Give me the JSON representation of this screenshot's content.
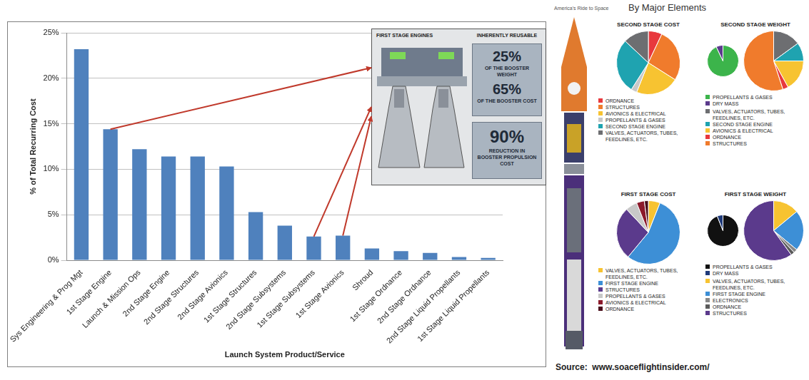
{
  "chart_data": [
    {
      "type": "bar",
      "categories": [
        "Sys Engineering & Prog Mgt",
        "1st Stage Engine",
        "Launch & Mission Ops",
        "2nd Stage Engine",
        "2nd Stage Structures",
        "2nd Stage Avionics",
        "1st Stage Structures",
        "2nd Stage Subsystems",
        "1st Stage Subsystems",
        "1st Stage Avionics",
        "Shroud",
        "1st Stage Ordnance",
        "2nd Stage Ordnance",
        "2nd Stage Liquid Propellants",
        "1st Stage Liquid Propellants"
      ],
      "values": [
        23.2,
        14.4,
        12.2,
        11.4,
        11.4,
        10.3,
        5.3,
        3.8,
        2.6,
        2.7,
        1.3,
        1.0,
        0.8,
        0.35,
        0.25
      ],
      "color": "#4f81bd",
      "ylim": [
        0,
        25
      ],
      "yticks": [
        {
          "value": 0,
          "label": "0%"
        },
        {
          "value": 5,
          "label": "5%"
        },
        {
          "value": 10,
          "label": "10%"
        },
        {
          "value": 15,
          "label": "15%"
        },
        {
          "value": 20,
          "label": "20%"
        },
        {
          "value": 25,
          "label": "25%"
        }
      ],
      "grid": true,
      "x_label": "Launch System Product/Service",
      "y_label": "% of Total Recurring Cost"
    },
    {
      "type": "pie",
      "title": "SECOND STAGE COST",
      "categories": [
        "ORDNANCE",
        "STRUCTURES",
        "AVIONICS & ELECTRICAL",
        "PROPELLANTS & GASES",
        "SECOND STAGE ENGINE",
        "VALVES, ACTUATORS, TUBES, FEEDLINES, ETC."
      ],
      "values": [
        7,
        27,
        22,
        3,
        28,
        13
      ],
      "colors": [
        "#e8383d",
        "#f07b2c",
        "#f7c331",
        "#c8c8c8",
        "#1fa3b0",
        "#6d6e71"
      ],
      "legend": "bottom"
    },
    {
      "type": "pie",
      "title": "SECOND STAGE WEIGHT",
      "categories": [
        "PROPELLANTS & GASES",
        "DRY MASS"
      ],
      "values": [
        93,
        7
      ],
      "colors": [
        "#3cb44b",
        "#5b3a8c"
      ],
      "legend": "bottom"
    },
    {
      "type": "pie",
      "categories": [
        "VALVES, ACTUATORS, TUBES, FEEDLINES, ETC.",
        "SECOND STAGE ENGINE",
        "AVIONICS & ELECTRICAL",
        "ORDNANCE",
        "STRUCTURES"
      ],
      "values": [
        15,
        10,
        17,
        3,
        55
      ],
      "colors": [
        "#6d6e71",
        "#1fa3b0",
        "#f7c331",
        "#e8383d",
        "#f07b2c"
      ],
      "legend": "bottom"
    },
    {
      "type": "pie",
      "title": "FIRST STAGE COST",
      "categories": [
        "VALVES, ACTUATORS, TUBES, FEEDLINES, ETC.",
        "FIRST STAGE ENGINE",
        "STRUCTURES",
        "PROPELLANTS & GASES",
        "AVIONICS & ELECTRICAL",
        "ORDNANCE"
      ],
      "values": [
        6,
        55,
        27,
        6,
        4,
        2
      ],
      "colors": [
        "#f7c331",
        "#3d8fd6",
        "#5b3a8c",
        "#c8c8c8",
        "#8b1a2b",
        "#4a0f1c"
      ],
      "legend": "bottom"
    },
    {
      "type": "pie",
      "title": "FIRST STAGE WEIGHT",
      "categories": [
        "PROPELLANTS & GASES",
        "DRY MASS"
      ],
      "values": [
        94,
        6
      ],
      "colors": [
        "#111111",
        "#1f3a7a"
      ],
      "legend": "bottom"
    },
    {
      "type": "pie",
      "categories": [
        "VALVES, ACTUATORS, TUBES, FEEDLINES, ETC.",
        "FIRST STAGE ENGINE",
        "ELECTRONICS",
        "ORDNANCE",
        "STRUCTURES"
      ],
      "values": [
        14,
        22,
        2,
        2,
        60
      ],
      "colors": [
        "#f7c331",
        "#3d8fd6",
        "#888888",
        "#5b5b5b",
        "#5b3a8c"
      ],
      "legend": "bottom"
    }
  ],
  "inset": {
    "heading": "FIRST STAGE ENGINES",
    "tag": "INHERENTLY REUSABLE",
    "stats": [
      {
        "value": "25%",
        "text": "OF THE BOOSTER WEIGHT"
      },
      {
        "value": "65%",
        "text": "OF THE BOOSTER COST"
      },
      {
        "value": "90%",
        "text": "REDUCTION IN BOOSTER PROPULSION COST"
      }
    ]
  },
  "infographic": {
    "header": "America's Ride to Space",
    "title": "By Major Elements"
  },
  "source": "Source:  www.soaceflightinsider.com/"
}
